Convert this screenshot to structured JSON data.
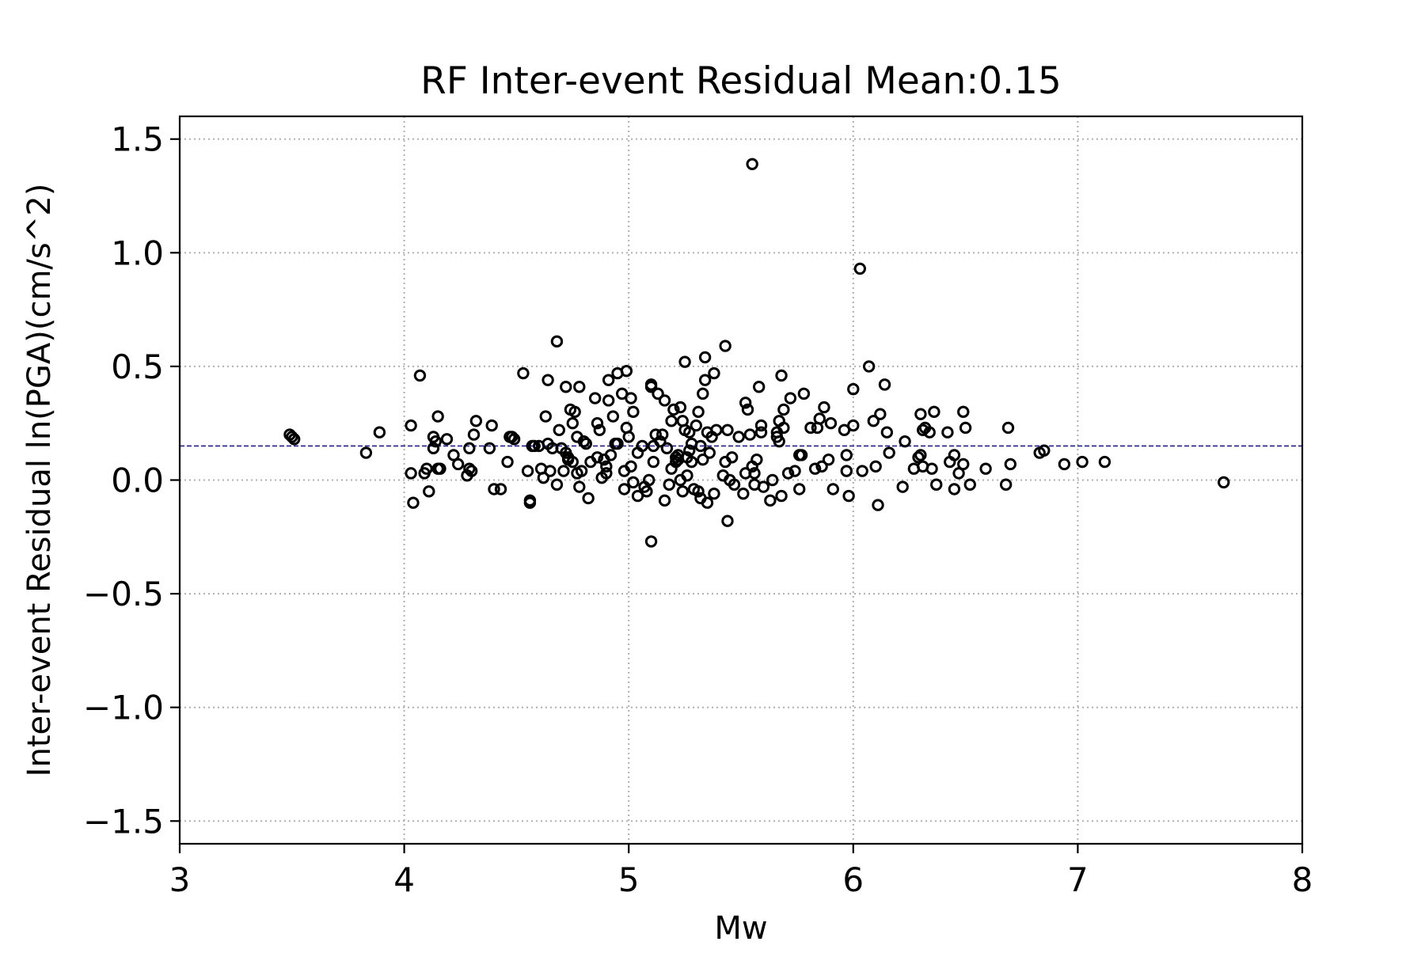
{
  "chart_data": {
    "type": "scatter",
    "title": "RF Inter-event Residual Mean:0.15",
    "xlabel": "Mw",
    "ylabel": "Inter-event Residual ln(PGA)(cm/s^2)",
    "xlim": [
      3,
      8
    ],
    "ylim": [
      -1.6,
      1.6
    ],
    "x_ticks": [
      3,
      4,
      5,
      6,
      7,
      8
    ],
    "y_ticks": [
      -1.5,
      -1.0,
      -0.5,
      0.0,
      0.5,
      1.0,
      1.5
    ],
    "x_tick_labels": [
      "3",
      "4",
      "5",
      "6",
      "7",
      "8"
    ],
    "y_tick_labels": [
      "−1.5",
      "−1.0",
      "−0.5",
      "0.0",
      "0.5",
      "1.0",
      "1.5"
    ],
    "grid": true,
    "mean_line": {
      "y": 0.15,
      "color": "#1f1f8f",
      "style": "dashed"
    },
    "marker": {
      "shape": "open-circle",
      "color": "#000000"
    },
    "points": [
      [
        3.49,
        0.2
      ],
      [
        3.5,
        0.19
      ],
      [
        3.51,
        0.18
      ],
      [
        3.83,
        0.12
      ],
      [
        3.89,
        0.21
      ],
      [
        4.03,
        0.24
      ],
      [
        4.03,
        0.03
      ],
      [
        4.04,
        -0.1
      ],
      [
        4.07,
        0.46
      ],
      [
        4.09,
        0.03
      ],
      [
        4.1,
        0.05
      ],
      [
        4.11,
        -0.05
      ],
      [
        4.13,
        0.19
      ],
      [
        4.13,
        0.14
      ],
      [
        4.14,
        0.17
      ],
      [
        4.15,
        0.05
      ],
      [
        4.15,
        0.28
      ],
      [
        4.16,
        0.05
      ],
      [
        4.19,
        0.18
      ],
      [
        4.22,
        0.11
      ],
      [
        4.24,
        0.07
      ],
      [
        4.28,
        0.02
      ],
      [
        4.29,
        0.14
      ],
      [
        4.29,
        0.05
      ],
      [
        4.3,
        0.04
      ],
      [
        4.31,
        0.2
      ],
      [
        4.32,
        0.26
      ],
      [
        4.38,
        0.14
      ],
      [
        4.39,
        0.24
      ],
      [
        4.4,
        -0.04
      ],
      [
        4.43,
        -0.04
      ],
      [
        4.46,
        0.08
      ],
      [
        4.47,
        0.19
      ],
      [
        4.48,
        0.19
      ],
      [
        4.49,
        0.18
      ],
      [
        4.53,
        0.47
      ],
      [
        4.55,
        0.04
      ],
      [
        4.56,
        -0.1
      ],
      [
        4.56,
        -0.09
      ],
      [
        4.57,
        0.15
      ],
      [
        4.58,
        0.15
      ],
      [
        4.6,
        0.15
      ],
      [
        4.61,
        0.05
      ],
      [
        4.62,
        0.01
      ],
      [
        4.63,
        0.28
      ],
      [
        4.64,
        0.44
      ],
      [
        4.64,
        0.16
      ],
      [
        4.65,
        0.04
      ],
      [
        4.66,
        0.14
      ],
      [
        4.68,
        0.61
      ],
      [
        4.68,
        -0.02
      ],
      [
        4.69,
        0.22
      ],
      [
        4.7,
        0.14
      ],
      [
        4.71,
        0.04
      ],
      [
        4.72,
        0.41
      ],
      [
        4.72,
        0.12
      ],
      [
        4.73,
        0.1
      ],
      [
        4.73,
        0.09
      ],
      [
        4.74,
        0.31
      ],
      [
        4.75,
        0.25
      ],
      [
        4.75,
        0.08
      ],
      [
        4.76,
        0.3
      ],
      [
        4.77,
        0.19
      ],
      [
        4.77,
        0.03
      ],
      [
        4.78,
        -0.03
      ],
      [
        4.78,
        0.41
      ],
      [
        4.79,
        0.04
      ],
      [
        4.8,
        0.17
      ],
      [
        4.81,
        0.16
      ],
      [
        4.82,
        -0.08
      ],
      [
        4.83,
        0.08
      ],
      [
        4.85,
        0.36
      ],
      [
        4.86,
        0.25
      ],
      [
        4.86,
        0.1
      ],
      [
        4.87,
        0.22
      ],
      [
        4.88,
        0.01
      ],
      [
        4.89,
        0.09
      ],
      [
        4.9,
        0.06
      ],
      [
        4.9,
        0.03
      ],
      [
        4.91,
        0.44
      ],
      [
        4.91,
        0.35
      ],
      [
        4.92,
        0.11
      ],
      [
        4.93,
        0.28
      ],
      [
        4.94,
        0.16
      ],
      [
        4.95,
        0.16
      ],
      [
        4.95,
        0.47
      ],
      [
        4.97,
        0.38
      ],
      [
        4.98,
        0.04
      ],
      [
        4.98,
        -0.04
      ],
      [
        4.99,
        0.48
      ],
      [
        4.99,
        0.23
      ],
      [
        5.0,
        0.19
      ],
      [
        5.01,
        0.06
      ],
      [
        5.01,
        0.36
      ],
      [
        5.02,
        0.3
      ],
      [
        5.02,
        -0.01
      ],
      [
        5.04,
        -0.07
      ],
      [
        5.04,
        0.12
      ],
      [
        5.06,
        0.15
      ],
      [
        5.07,
        -0.03
      ],
      [
        5.08,
        -0.05
      ],
      [
        5.09,
        0.0
      ],
      [
        5.1,
        0.42
      ],
      [
        5.1,
        0.41
      ],
      [
        5.1,
        -0.27
      ],
      [
        5.11,
        0.08
      ],
      [
        5.11,
        0.15
      ],
      [
        5.12,
        0.2
      ],
      [
        5.13,
        0.38
      ],
      [
        5.14,
        0.17
      ],
      [
        5.15,
        0.2
      ],
      [
        5.16,
        -0.09
      ],
      [
        5.16,
        0.35
      ],
      [
        5.17,
        0.14
      ],
      [
        5.18,
        -0.02
      ],
      [
        5.19,
        0.05
      ],
      [
        5.19,
        0.26
      ],
      [
        5.2,
        0.31
      ],
      [
        5.21,
        0.1
      ],
      [
        5.21,
        0.08
      ],
      [
        5.22,
        0.09
      ],
      [
        5.22,
        0.11
      ],
      [
        5.23,
        0.32
      ],
      [
        5.23,
        0.0
      ],
      [
        5.24,
        -0.05
      ],
      [
        5.24,
        0.26
      ],
      [
        5.25,
        0.52
      ],
      [
        5.25,
        0.22
      ],
      [
        5.26,
        0.1
      ],
      [
        5.26,
        0.02
      ],
      [
        5.27,
        0.13
      ],
      [
        5.27,
        0.21
      ],
      [
        5.28,
        0.08
      ],
      [
        5.28,
        0.16
      ],
      [
        5.29,
        -0.04
      ],
      [
        5.3,
        0.24
      ],
      [
        5.31,
        -0.05
      ],
      [
        5.31,
        0.3
      ],
      [
        5.32,
        -0.08
      ],
      [
        5.32,
        0.15
      ],
      [
        5.33,
        0.38
      ],
      [
        5.33,
        0.09
      ],
      [
        5.34,
        0.54
      ],
      [
        5.34,
        0.44
      ],
      [
        5.35,
        0.21
      ],
      [
        5.35,
        -0.1
      ],
      [
        5.36,
        0.12
      ],
      [
        5.37,
        0.19
      ],
      [
        5.38,
        -0.06
      ],
      [
        5.38,
        0.47
      ],
      [
        5.39,
        0.22
      ],
      [
        5.42,
        0.02
      ],
      [
        5.43,
        0.59
      ],
      [
        5.43,
        0.08
      ],
      [
        5.44,
        0.22
      ],
      [
        5.44,
        -0.18
      ],
      [
        5.45,
        0.0
      ],
      [
        5.46,
        0.1
      ],
      [
        5.47,
        -0.02
      ],
      [
        5.49,
        0.19
      ],
      [
        5.51,
        -0.06
      ],
      [
        5.52,
        0.34
      ],
      [
        5.52,
        0.03
      ],
      [
        5.53,
        0.31
      ],
      [
        5.54,
        0.2
      ],
      [
        5.55,
        0.06
      ],
      [
        5.55,
        1.39
      ],
      [
        5.56,
        0.03
      ],
      [
        5.56,
        -0.02
      ],
      [
        5.57,
        0.09
      ],
      [
        5.58,
        0.41
      ],
      [
        5.59,
        0.24
      ],
      [
        5.59,
        0.21
      ],
      [
        5.6,
        -0.03
      ],
      [
        5.63,
        -0.09
      ],
      [
        5.64,
        0.0
      ],
      [
        5.66,
        0.21
      ],
      [
        5.66,
        0.19
      ],
      [
        5.67,
        0.17
      ],
      [
        5.67,
        0.26
      ],
      [
        5.68,
        0.46
      ],
      [
        5.68,
        -0.07
      ],
      [
        5.69,
        0.31
      ],
      [
        5.69,
        0.23
      ],
      [
        5.71,
        0.03
      ],
      [
        5.72,
        0.36
      ],
      [
        5.74,
        0.04
      ],
      [
        5.76,
        0.11
      ],
      [
        5.76,
        -0.04
      ],
      [
        5.77,
        0.11
      ],
      [
        5.78,
        0.38
      ],
      [
        5.81,
        0.23
      ],
      [
        5.83,
        0.05
      ],
      [
        5.84,
        0.23
      ],
      [
        5.85,
        0.27
      ],
      [
        5.86,
        0.06
      ],
      [
        5.87,
        0.32
      ],
      [
        5.89,
        0.09
      ],
      [
        5.9,
        0.25
      ],
      [
        5.91,
        -0.04
      ],
      [
        5.96,
        0.22
      ],
      [
        5.97,
        0.11
      ],
      [
        5.97,
        0.04
      ],
      [
        5.98,
        -0.07
      ],
      [
        6.0,
        0.4
      ],
      [
        6.0,
        0.24
      ],
      [
        6.03,
        0.93
      ],
      [
        6.04,
        0.04
      ],
      [
        6.07,
        0.5
      ],
      [
        6.09,
        0.26
      ],
      [
        6.1,
        0.06
      ],
      [
        6.11,
        -0.11
      ],
      [
        6.12,
        0.29
      ],
      [
        6.14,
        0.42
      ],
      [
        6.15,
        0.21
      ],
      [
        6.16,
        0.12
      ],
      [
        6.22,
        -0.03
      ],
      [
        6.23,
        0.17
      ],
      [
        6.27,
        0.05
      ],
      [
        6.29,
        0.1
      ],
      [
        6.3,
        0.11
      ],
      [
        6.3,
        0.29
      ],
      [
        6.31,
        0.06
      ],
      [
        6.31,
        0.22
      ],
      [
        6.32,
        0.23
      ],
      [
        6.34,
        0.21
      ],
      [
        6.35,
        0.05
      ],
      [
        6.36,
        0.3
      ],
      [
        6.37,
        -0.02
      ],
      [
        6.42,
        0.21
      ],
      [
        6.43,
        0.08
      ],
      [
        6.45,
        0.11
      ],
      [
        6.45,
        -0.04
      ],
      [
        6.47,
        0.03
      ],
      [
        6.49,
        0.3
      ],
      [
        6.49,
        0.07
      ],
      [
        6.5,
        0.23
      ],
      [
        6.52,
        -0.02
      ],
      [
        6.59,
        0.05
      ],
      [
        6.68,
        -0.02
      ],
      [
        6.69,
        0.23
      ],
      [
        6.7,
        0.07
      ],
      [
        6.83,
        0.12
      ],
      [
        6.85,
        0.13
      ],
      [
        6.94,
        0.07
      ],
      [
        7.02,
        0.08
      ],
      [
        7.12,
        0.08
      ],
      [
        7.65,
        -0.01
      ]
    ]
  }
}
